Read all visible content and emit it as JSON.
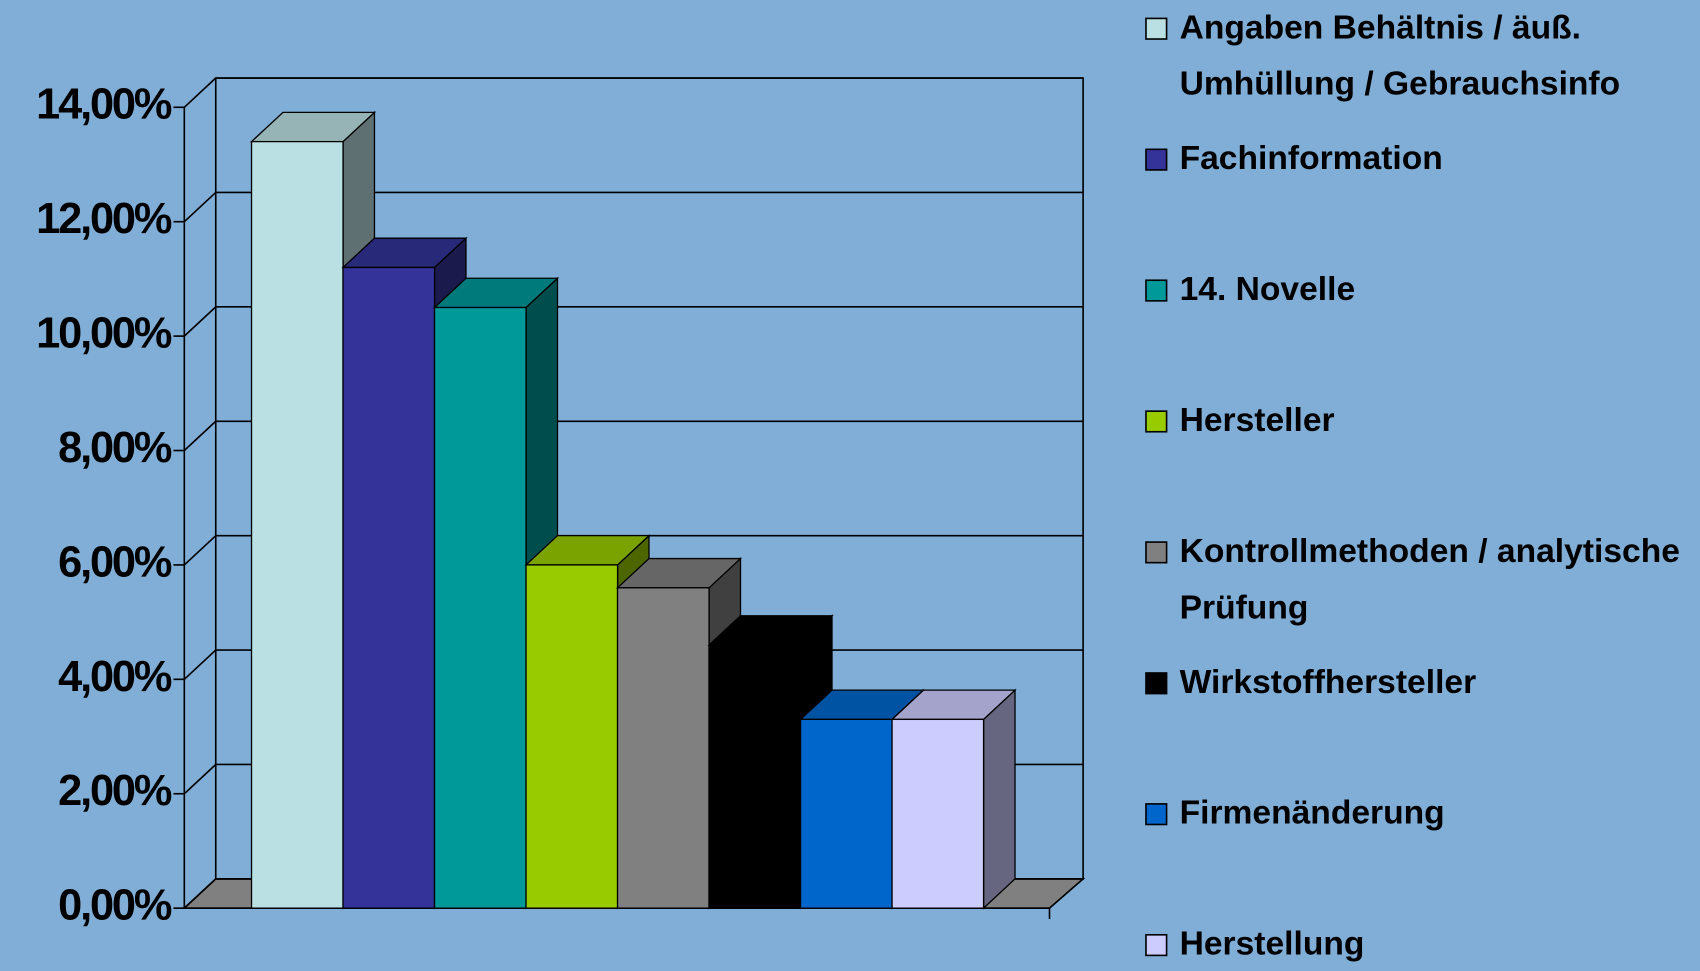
{
  "chart_data": {
    "type": "bar3d",
    "series": [
      {
        "name": "Angaben Behältnis / äuß. Umhüllung / Gebrauchsinfo",
        "color": "#bbe0e3",
        "values": [
          13.4
        ]
      },
      {
        "name": "Fachinformation",
        "color": "#333399",
        "values": [
          11.2
        ]
      },
      {
        "name": "14. Novelle",
        "color": "#009999",
        "values": [
          10.5
        ]
      },
      {
        "name": "Hersteller",
        "color": "#99cc00",
        "values": [
          6.0
        ]
      },
      {
        "name": "Kontrollmethoden / analytische Prüfung",
        "color": "#808080",
        "values": [
          5.6
        ]
      },
      {
        "name": "Wirkstoffhersteller",
        "color": "#000000",
        "values": [
          4.6
        ]
      },
      {
        "name": "Firmenänderung",
        "color": "#0066cc",
        "values": [
          3.3
        ]
      },
      {
        "name": "Herstellung",
        "color": "#ccccff",
        "values": [
          3.3
        ]
      }
    ],
    "ylim": [
      0,
      14
    ],
    "yticks": [
      {
        "value": 0,
        "label": "0,00%"
      },
      {
        "value": 2,
        "label": "2,00%"
      },
      {
        "value": 4,
        "label": "4,00%"
      },
      {
        "value": 6,
        "label": "6,00%"
      },
      {
        "value": 8,
        "label": "8,00%"
      },
      {
        "value": 10,
        "label": "10,00%"
      },
      {
        "value": 12,
        "label": "12,00%"
      },
      {
        "value": 14,
        "label": "14,00%"
      }
    ],
    "grid": true
  }
}
